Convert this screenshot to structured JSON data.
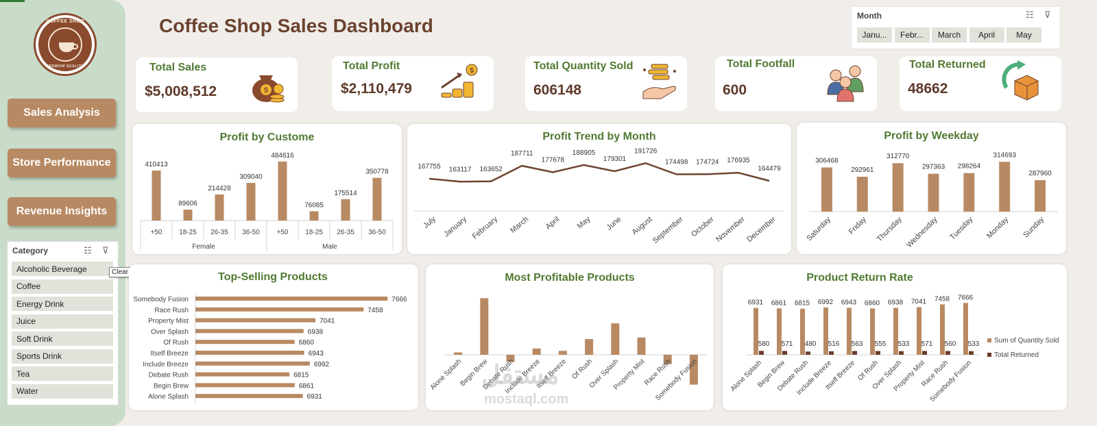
{
  "dashboard_title": "Coffee Shop Sales Dashboard",
  "logo": {
    "top_text": "COFFEE SHOP",
    "bottom_text": "PREMIUM QUALITY"
  },
  "nav": [
    {
      "label": "Sales Analysis"
    },
    {
      "label": "Store Performance"
    },
    {
      "label": "Revenue Insights"
    }
  ],
  "category_slicer": {
    "title": "Category",
    "items": [
      "Alcoholic Beverage",
      "Coffee",
      "Energy Drink",
      "Juice",
      "Soft Drink",
      "Sports Drink",
      "Tea",
      "Water"
    ]
  },
  "tooltip": "Clear Filter (Alt+C)",
  "month_slicer": {
    "title": "Month",
    "items": [
      "Janu...",
      "Febr...",
      "March",
      "April",
      "May"
    ]
  },
  "kpis": [
    {
      "label": "Total Sales",
      "value": "$5,008,512",
      "icon": "money-bag-icon"
    },
    {
      "label": "Total Profit",
      "value": "$2,110,479",
      "icon": "profit-chart-icon"
    },
    {
      "label": "Total Quantity Sold",
      "value": "606148",
      "icon": "coins-hand-icon"
    },
    {
      "label": "Total Footfall",
      "value": "600",
      "icon": "people-icon"
    },
    {
      "label": "Total Returned",
      "value": "48662",
      "icon": "return-box-icon"
    }
  ],
  "watermark": {
    "arabic": "مستقل",
    "latin": "mostaql.com"
  },
  "colors": {
    "bar": "#b88a63",
    "line": "#6b4330",
    "dark_bar": "#6b3e2a",
    "accent_green": "#507a32"
  },
  "chart_data": [
    {
      "id": "profit_by_customer",
      "type": "bar",
      "title": "Profit by Custome",
      "groups": [
        "Female",
        "Male"
      ],
      "categories": [
        "+50",
        "18-25",
        "26-35",
        "36-50",
        "+50",
        "18-25",
        "26-35",
        "36-50"
      ],
      "values": [
        410413,
        89606,
        214428,
        309040,
        484616,
        76085,
        175514,
        350778
      ],
      "ylim": [
        0,
        540000
      ]
    },
    {
      "id": "profit_trend_by_month",
      "type": "line",
      "title": "Profit Trend by Month",
      "categories": [
        "July",
        "January",
        "February",
        "March",
        "April",
        "May",
        "June",
        "August",
        "September",
        "October",
        "November",
        "December"
      ],
      "values": [
        167755,
        163117,
        163652,
        187711,
        177678,
        188905,
        179301,
        191726,
        174498,
        174724,
        176935,
        164479
      ],
      "ylim": [
        120000,
        210000
      ]
    },
    {
      "id": "profit_by_weekday",
      "type": "bar",
      "title": "Profit by Weekday",
      "categories": [
        "Saturday",
        "Friday",
        "Thursday",
        "Wednesday",
        "Tuesday",
        "Monday",
        "Sunday"
      ],
      "values": [
        306468,
        292961,
        312770,
        297363,
        298264,
        314693,
        287960
      ],
      "ylim": [
        270000,
        320000
      ]
    },
    {
      "id": "top_selling_products",
      "type": "bar",
      "orientation": "horizontal",
      "title": "Top-Selling Products",
      "categories": [
        "Somebody Fusion",
        "Race Rush",
        "Property Mist",
        "Over Splash",
        "Of Rush",
        "Itself Breeze",
        "Include Breeze",
        "Debate Rush",
        "Begin Brew",
        "Alone Splash"
      ],
      "values": [
        7666,
        7458,
        7041,
        6938,
        6860,
        6943,
        6992,
        6815,
        6861,
        6931
      ],
      "xlim": [
        6000,
        7700
      ]
    },
    {
      "id": "most_profitable_products",
      "type": "bar",
      "title": "Most Profitable Products",
      "categories": [
        "Alone Splash",
        "Begin Brew",
        "Debate Rush",
        "Include Breeze",
        "Itself Breeze",
        "Of Rush",
        "Over Splash",
        "Property Mist",
        "Race Rush",
        "Somebody Fusion"
      ],
      "values": [
        3,
        72,
        -9,
        8,
        5,
        20,
        40,
        22,
        -12,
        -38
      ],
      "ylim": [
        -40,
        75
      ]
    },
    {
      "id": "product_return_rate",
      "type": "bar",
      "title": "Product Return Rate",
      "categories": [
        "Alone Splash",
        "Begin Brew",
        "Debate Rush",
        "Include Breeze",
        "Itself Breeze",
        "Of Rush",
        "Over Splash",
        "Property Mist",
        "Race Rush",
        "Somebody Fusion"
      ],
      "series": [
        {
          "name": "Sum of Quantity Sold",
          "values": [
            6931,
            6861,
            6815,
            6992,
            6943,
            6860,
            6938,
            7041,
            7458,
            7666
          ]
        },
        {
          "name": "Total Returned",
          "values": [
            580,
            571,
            480,
            516,
            563,
            555,
            533,
            571,
            560,
            533
          ]
        }
      ],
      "ylim": [
        0,
        7900
      ],
      "legend": "right"
    }
  ]
}
